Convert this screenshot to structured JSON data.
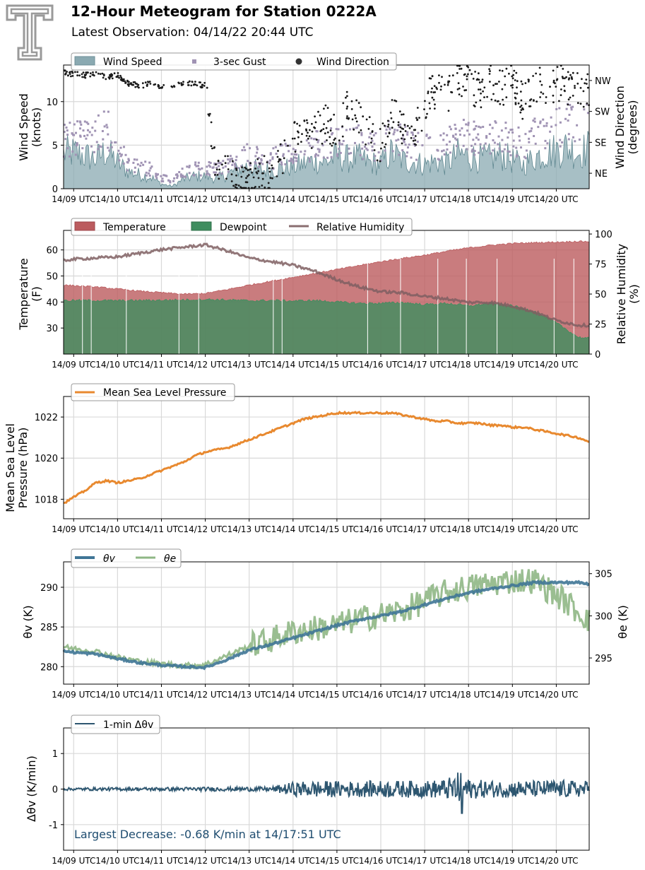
{
  "header": {
    "title": "12-Hour Meteogram for Station 0222A",
    "subtitle": "Latest Observation: 04/14/22 20:44 UTC"
  },
  "colors": {
    "wind_fill": "#8aa9b1",
    "gust": "#a093b4",
    "direction": "#1a1a1a",
    "temperature": "#bb5b5e",
    "dewpoint": "#3f8d5f",
    "rh": "#7f5f61",
    "pressure": "#e8892f",
    "theta_v": "#3f7596",
    "theta_e": "#8fb785",
    "dtheta": "#2d5670",
    "annotation": "#1f4d70"
  },
  "chart_data": [
    {
      "type": "area",
      "x_tick_labels": [
        "14/09 UTC",
        "14/10 UTC",
        "14/11 UTC",
        "14/12 UTC",
        "14/13 UTC",
        "14/14 UTC",
        "14/15 UTC",
        "14/16 UTC",
        "14/17 UTC",
        "14/18 UTC",
        "14/19 UTC",
        "14/20 UTC"
      ],
      "x_range_hours": [
        8.77,
        20.75
      ],
      "ylabel": [
        "Wind Speed",
        "(knots)"
      ],
      "y2label": [
        "Wind Direction",
        "(degrees)"
      ],
      "ylim": [
        0,
        14.2
      ],
      "y_ticks": [
        0,
        5,
        10
      ],
      "y2lim": [
        0,
        360
      ],
      "y2_ticks": [
        {
          "label": "NE",
          "value": 45
        },
        {
          "label": "SE",
          "value": 135
        },
        {
          "label": "SW",
          "value": 225
        },
        {
          "label": "NW",
          "value": 315
        }
      ],
      "legend": [
        "Wind Speed",
        "3-sec Gust",
        "Wind Direction"
      ],
      "series": [
        {
          "name": "Wind Speed",
          "kind": "area",
          "x": [
            8.77,
            9,
            9.25,
            9.5,
            9.75,
            10,
            10.25,
            10.5,
            10.75,
            11,
            11.25,
            11.5,
            11.75,
            12,
            12.25,
            12.5,
            12.75,
            13,
            13.25,
            13.5,
            13.75,
            14,
            14.25,
            14.5,
            14.75,
            15,
            15.25,
            15.5,
            15.75,
            16,
            16.25,
            16.5,
            16.75,
            17,
            17.25,
            17.5,
            17.75,
            18,
            18.25,
            18.5,
            18.75,
            19,
            19.25,
            19.5,
            19.75,
            20,
            20.25,
            20.5,
            20.75
          ],
          "y": [
            4.5,
            4.6,
            4.2,
            3.8,
            4.8,
            3.3,
            2.2,
            1.8,
            1.5,
            0.6,
            0.3,
            1.2,
            1.6,
            1.6,
            1.3,
            1.8,
            2.5,
            2.9,
            2.3,
            2.4,
            2.6,
            2.8,
            3.2,
            3.6,
            3.4,
            4.2,
            3.8,
            3.9,
            3.3,
            3.2,
            4.6,
            3.6,
            3.4,
            3.1,
            3.5,
            3.2,
            4.4,
            4.2,
            3.8,
            3.9,
            4.3,
            3.6,
            3.0,
            4.0,
            4.6,
            4.9,
            5.3,
            4.6,
            5.2
          ]
        },
        {
          "name": "3-sec Gust",
          "kind": "points",
          "x": [
            8.77,
            9,
            9.25,
            9.5,
            9.75,
            10,
            10.25,
            10.5,
            10.75,
            11,
            11.25,
            11.5,
            11.75,
            12,
            12.25,
            12.5,
            12.75,
            13,
            13.25,
            13.5,
            13.75,
            14,
            14.25,
            14.5,
            14.75,
            15,
            15.25,
            15.5,
            15.75,
            16,
            16.25,
            16.5,
            16.75,
            17,
            17.25,
            17.5,
            17.75,
            18,
            18.25,
            18.5,
            18.75,
            19,
            19.25,
            19.5,
            19.75,
            20,
            20.25,
            20.5,
            20.75
          ],
          "y": [
            6.6,
            6.8,
            6.9,
            7.4,
            8.2,
            5.4,
            3.6,
            3.0,
            2.6,
            1.5,
            1.0,
            2.2,
            2.6,
            2.8,
            2.5,
            3.1,
            4.2,
            4.8,
            4.2,
            4.0,
            4.6,
            4.8,
            5.2,
            5.8,
            5.6,
            6.6,
            6.2,
            6.4,
            5.6,
            5.8,
            7.4,
            6.4,
            6.0,
            5.6,
            6.1,
            5.8,
            7.4,
            7.2,
            6.4,
            6.6,
            7.2,
            6.8,
            6.0,
            7.3,
            7.8,
            8.4,
            8.7,
            8.0,
            8.7
          ]
        },
        {
          "name": "Wind Direction",
          "kind": "points",
          "x": [
            8.77,
            9,
            9.25,
            9.5,
            9.75,
            10,
            10.25,
            10.5,
            10.75,
            11,
            11.25,
            11.5,
            11.75,
            12,
            12.25,
            12.5,
            12.75,
            13,
            13.25,
            13.5,
            13.75,
            14,
            14.25,
            14.5,
            14.75,
            15,
            15.25,
            15.5,
            15.75,
            16,
            16.25,
            16.5,
            16.75,
            17,
            17.25,
            17.5,
            17.75,
            18,
            18.25,
            18.5,
            18.75,
            19,
            19.25,
            19.5,
            19.75,
            20,
            20.25,
            20.5,
            20.75
          ],
          "y": [
            338,
            333,
            330,
            336,
            325,
            330,
            306,
            300,
            305,
            300,
            298,
            308,
            306,
            300,
            40,
            60,
            25,
            28,
            55,
            20,
            95,
            140,
            160,
            175,
            190,
            150,
            240,
            200,
            170,
            120,
            230,
            180,
            150,
            250,
            290,
            260,
            330,
            300,
            280,
            315,
            290,
            320,
            250,
            305,
            290,
            310,
            300,
            295,
            290
          ]
        }
      ]
    },
    {
      "type": "area",
      "x_tick_labels": [
        "14/09 UTC",
        "14/10 UTC",
        "14/11 UTC",
        "14/12 UTC",
        "14/13 UTC",
        "14/14 UTC",
        "14/15 UTC",
        "14/16 UTC",
        "14/17 UTC",
        "14/18 UTC",
        "14/19 UTC",
        "14/20 UTC"
      ],
      "x_range_hours": [
        8.77,
        20.75
      ],
      "ylabel": [
        "Temperature",
        "(F)"
      ],
      "y2label": [
        "Relative Humidity",
        "(%)"
      ],
      "ylim": [
        20,
        67.5
      ],
      "y_ticks": [
        30,
        40,
        50,
        60
      ],
      "y2lim": [
        0,
        103
      ],
      "y2_ticks": [
        0,
        25,
        50,
        75,
        100
      ],
      "legend": [
        "Temperature",
        "Dewpoint",
        "Relative Humidity"
      ],
      "series": [
        {
          "name": "Temperature",
          "kind": "area",
          "x": [
            8.77,
            9,
            9.5,
            10,
            10.5,
            11,
            11.5,
            12,
            12.5,
            13,
            13.5,
            14,
            14.5,
            15,
            15.5,
            16,
            16.5,
            17,
            17.5,
            18,
            18.5,
            19,
            19.5,
            20,
            20.5,
            20.75
          ],
          "y": [
            46.5,
            46.3,
            45.8,
            45.0,
            44.2,
            43.6,
            43.0,
            43.3,
            44.8,
            46.5,
            48.0,
            49.5,
            51.0,
            52.5,
            54.0,
            55.5,
            56.8,
            58.0,
            59.5,
            60.8,
            61.8,
            62.5,
            62.8,
            63.0,
            63.3,
            63.2
          ]
        },
        {
          "name": "Dewpoint",
          "kind": "area",
          "x": [
            8.77,
            9,
            9.5,
            10,
            10.5,
            11,
            11.5,
            12,
            12.5,
            13,
            13.5,
            14,
            14.5,
            15,
            15.5,
            16,
            16.5,
            17,
            17.5,
            18,
            18.5,
            19,
            19.5,
            20,
            20.5,
            20.75
          ],
          "y": [
            40.5,
            40.6,
            40.6,
            40.5,
            40.6,
            40.7,
            40.8,
            41.0,
            40.8,
            40.5,
            40.6,
            40.4,
            40.6,
            40.0,
            39.5,
            39.5,
            39.8,
            39.0,
            39.5,
            38.5,
            39.5,
            38.5,
            36.5,
            32.0,
            26.5,
            26.0
          ]
        },
        {
          "name": "Relative Humidity",
          "kind": "line",
          "x": [
            8.77,
            9,
            9.5,
            10,
            10.5,
            11,
            11.5,
            12,
            12.5,
            13,
            13.5,
            14,
            14.5,
            15,
            15.5,
            16,
            16.5,
            17,
            17.5,
            18,
            18.5,
            19,
            19.5,
            20,
            20.5,
            20.75
          ],
          "y": [
            78,
            79,
            80,
            81,
            84,
            87,
            89,
            91,
            86,
            80,
            77,
            74,
            69,
            62,
            56,
            52,
            51,
            48,
            46,
            43,
            43,
            40,
            35,
            28,
            24,
            24
          ]
        }
      ]
    },
    {
      "type": "line",
      "x_tick_labels": [
        "14/09 UTC",
        "14/10 UTC",
        "14/11 UTC",
        "14/12 UTC",
        "14/13 UTC",
        "14/14 UTC",
        "14/15 UTC",
        "14/16 UTC",
        "14/17 UTC",
        "14/18 UTC",
        "14/19 UTC",
        "14/20 UTC"
      ],
      "x_range_hours": [
        8.77,
        20.75
      ],
      "ylabel": [
        "Mean Sea Level",
        "Pressure (hPa)"
      ],
      "ylim": [
        1017.05,
        1023.0
      ],
      "y_ticks": [
        1018,
        1020,
        1022
      ],
      "legend": [
        "Mean Sea Level Pressure"
      ],
      "series": [
        {
          "name": "Mean Sea Level Pressure",
          "x": [
            8.77,
            9,
            9.25,
            9.5,
            9.75,
            10,
            10.25,
            10.5,
            10.75,
            11,
            11.25,
            11.5,
            11.75,
            12,
            12.25,
            12.5,
            12.75,
            13,
            13.25,
            13.5,
            13.75,
            14,
            14.25,
            14.5,
            14.75,
            15,
            15.25,
            15.5,
            15.75,
            16,
            16.25,
            16.5,
            16.75,
            17,
            17.25,
            17.5,
            17.75,
            18,
            18.25,
            18.5,
            18.75,
            19,
            19.25,
            19.5,
            19.75,
            20,
            20.25,
            20.5,
            20.75
          ],
          "y": [
            1017.8,
            1018.1,
            1018.4,
            1018.8,
            1018.9,
            1018.8,
            1018.9,
            1019.0,
            1019.2,
            1019.4,
            1019.6,
            1019.8,
            1020.1,
            1020.3,
            1020.4,
            1020.5,
            1020.7,
            1020.9,
            1021.1,
            1021.3,
            1021.5,
            1021.7,
            1021.9,
            1022.0,
            1022.1,
            1022.2,
            1022.2,
            1022.2,
            1022.2,
            1022.2,
            1022.2,
            1022.1,
            1022.0,
            1021.9,
            1021.8,
            1021.8,
            1021.7,
            1021.7,
            1021.7,
            1021.6,
            1021.6,
            1021.5,
            1021.5,
            1021.4,
            1021.3,
            1021.2,
            1021.1,
            1021.0,
            1020.8
          ]
        }
      ]
    },
    {
      "type": "line",
      "x_tick_labels": [
        "14/09 UTC",
        "14/10 UTC",
        "14/11 UTC",
        "14/12 UTC",
        "14/13 UTC",
        "14/14 UTC",
        "14/15 UTC",
        "14/16 UTC",
        "14/17 UTC",
        "14/18 UTC",
        "14/19 UTC",
        "14/20 UTC"
      ],
      "x_range_hours": [
        8.77,
        20.75
      ],
      "ylabel": "θv (K)",
      "y2label": "θe (K)",
      "ylim": [
        277.8,
        293.2
      ],
      "y_ticks": [
        280,
        285,
        290
      ],
      "y2lim": [
        291.9,
        306.4
      ],
      "y2_ticks": [
        295,
        300,
        305
      ],
      "legend": [
        "θv",
        "θe"
      ],
      "series": [
        {
          "name": "θv",
          "axis": "left",
          "x": [
            8.77,
            9,
            9.5,
            10,
            10.5,
            11,
            11.5,
            12,
            12.5,
            13,
            13.5,
            14,
            14.5,
            15,
            15.5,
            16,
            16.5,
            17,
            17.5,
            18,
            18.5,
            19,
            19.5,
            20,
            20.5,
            20.75
          ],
          "y": [
            282.0,
            281.8,
            281.6,
            281.0,
            280.5,
            280.2,
            280.0,
            279.9,
            280.9,
            282.1,
            282.8,
            283.6,
            284.4,
            285.2,
            285.9,
            286.4,
            287.0,
            287.8,
            288.6,
            289.3,
            289.8,
            290.2,
            290.6,
            290.6,
            290.6,
            290.4
          ]
        },
        {
          "name": "θe",
          "axis": "right",
          "x": [
            8.77,
            9,
            9.5,
            10,
            10.5,
            11,
            11.5,
            12,
            12.5,
            13,
            13.5,
            14,
            14.5,
            15,
            15.5,
            16,
            16.5,
            17,
            17.5,
            18,
            18.5,
            19,
            19.5,
            20,
            20.5,
            20.75
          ],
          "y": [
            296.3,
            296.1,
            295.8,
            295.1,
            294.6,
            294.3,
            294.1,
            294.2,
            295.3,
            296.4,
            297.2,
            298.1,
            298.5,
            298.9,
            299.6,
            300.1,
            300.6,
            301.8,
            302.8,
            303.4,
            303.8,
            304.2,
            304.2,
            302.5,
            300.5,
            299.5
          ]
        }
      ]
    },
    {
      "type": "line",
      "x_tick_labels": [
        "14/09 UTC",
        "14/10 UTC",
        "14/11 UTC",
        "14/12 UTC",
        "14/13 UTC",
        "14/14 UTC",
        "14/15 UTC",
        "14/16 UTC",
        "14/17 UTC",
        "14/18 UTC",
        "14/19 UTC",
        "14/20 UTC"
      ],
      "x_range_hours": [
        8.77,
        20.75
      ],
      "ylabel": "Δθv (K/min)",
      "ylim": [
        -1.72,
        1.72
      ],
      "y_ticks": [
        -1,
        0,
        1
      ],
      "legend": [
        "1-min Δθv"
      ],
      "annotation": "Largest Decrease: -0.68 K/min at 14/17:51 UTC",
      "series": [
        {
          "name": "1-min Δθv",
          "x": [
            8.77,
            13.5,
            14.0,
            14.5,
            15.0,
            15.5,
            16.0,
            16.5,
            17.0,
            17.5,
            17.85,
            18.0,
            18.5,
            19.0,
            19.5,
            20.0,
            20.5,
            20.75
          ],
          "y_amplitude": [
            0.05,
            0.08,
            0.25,
            0.3,
            0.28,
            0.28,
            0.3,
            0.3,
            0.3,
            0.35,
            0.68,
            0.35,
            0.3,
            0.3,
            0.3,
            0.32,
            0.3,
            0.3
          ]
        }
      ]
    }
  ]
}
